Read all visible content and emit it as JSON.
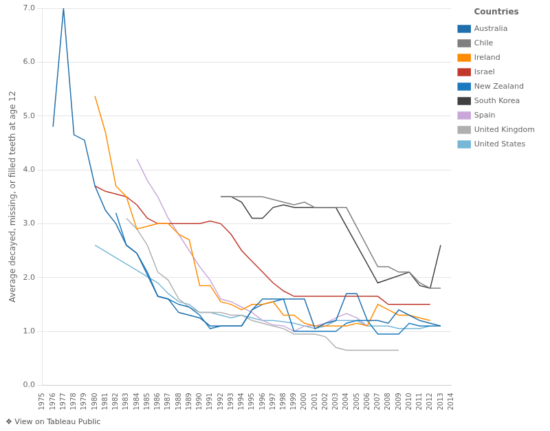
{
  "chart_data": {
    "type": "line",
    "ylabel": "Average decayed, missing, or filled teeth at age 12",
    "annotations": [
      "❖ View on Tableau Public"
    ],
    "legend_title": "Countries",
    "legend": "upper right",
    "grid": "y",
    "xlim": [
      1975,
      2014
    ],
    "xticks": [
      1975,
      1976,
      1977,
      1978,
      1979,
      1980,
      1981,
      1982,
      1983,
      1984,
      1985,
      1986,
      1987,
      1988,
      1989,
      1990,
      1991,
      1992,
      1993,
      1994,
      1995,
      1996,
      1997,
      1998,
      1999,
      2000,
      2001,
      2002,
      2003,
      2004,
      2005,
      2006,
      2007,
      2008,
      2009,
      2010,
      2011,
      2012,
      2013,
      2014
    ],
    "ylim": [
      0.0,
      7.0
    ],
    "yticks": [
      {
        "value": 0,
        "label": "0.0"
      },
      {
        "value": 1,
        "label": "1.0"
      },
      {
        "value": 2,
        "label": "2.0"
      },
      {
        "value": 3,
        "label": "3.0"
      },
      {
        "value": 4,
        "label": "4.0"
      },
      {
        "value": 5,
        "label": "5.0"
      },
      {
        "value": 6,
        "label": "6.0"
      },
      {
        "value": 7,
        "label": "7.0"
      }
    ],
    "series": [
      {
        "name": "Australia",
        "color": "#1f6fad",
        "x": [
          1976,
          1977,
          1978,
          1979,
          1980,
          1981,
          1982,
          1983,
          1984,
          1985,
          1986,
          1987,
          1988,
          1989,
          1990,
          1991,
          1992,
          1993,
          1994,
          1995,
          1996,
          1997,
          1998,
          1999,
          2000,
          2001,
          2002,
          2003,
          2004,
          2005,
          2006,
          2007,
          2008,
          2009,
          2010,
          2011,
          2012,
          2013
        ],
        "values": [
          4.8,
          7.0,
          4.65,
          4.55,
          3.7,
          3.25,
          3.0,
          2.6,
          2.45,
          2.05,
          1.65,
          1.6,
          1.35,
          1.3,
          1.25,
          1.1,
          1.1,
          1.1,
          1.1,
          1.4,
          1.6,
          1.6,
          1.6,
          1.6,
          1.6,
          1.05,
          1.15,
          1.2,
          1.7,
          1.7,
          1.2,
          1.2,
          1.15,
          1.4,
          1.3,
          1.2,
          1.15,
          1.1
        ]
      },
      {
        "name": "Chile",
        "color": "#7f7f7f",
        "x": [
          1992,
          1996,
          1999,
          2000,
          2001,
          2002,
          2003,
          2004,
          2007,
          2008,
          2009,
          2010,
          2011,
          2012,
          2013
        ],
        "values": [
          3.5,
          3.5,
          3.35,
          3.4,
          3.3,
          3.3,
          3.3,
          3.3,
          2.2,
          2.2,
          2.1,
          2.1,
          1.9,
          1.8,
          1.8
        ]
      },
      {
        "name": "Ireland",
        "color": "#ff8c00",
        "x": [
          1980,
          1981,
          1982,
          1983,
          1984,
          1985,
          1986,
          1987,
          1988,
          1989,
          1990,
          1991,
          1992,
          1993,
          1994,
          1995,
          1996,
          1997,
          1998,
          1999,
          2000,
          2001,
          2002,
          2003,
          2004,
          2005,
          2006,
          2007,
          2008,
          2009,
          2010,
          2011,
          2012
        ],
        "values": [
          5.37,
          4.7,
          3.7,
          3.5,
          2.9,
          2.95,
          3.0,
          3.0,
          2.8,
          2.7,
          1.85,
          1.85,
          1.55,
          1.5,
          1.4,
          1.5,
          1.5,
          1.55,
          1.3,
          1.3,
          1.15,
          1.1,
          1.1,
          1.1,
          1.1,
          1.15,
          1.1,
          1.5,
          1.4,
          1.3,
          1.3,
          1.25,
          1.2
        ]
      },
      {
        "name": "Israel",
        "color": "#c0392b",
        "x": [
          1980,
          1981,
          1982,
          1983,
          1984,
          1985,
          1986,
          1987,
          1988,
          1989,
          1990,
          1991,
          1992,
          1993,
          1994,
          1995,
          1996,
          1997,
          1998,
          1999,
          2000,
          2001,
          2002,
          2003,
          2004,
          2005,
          2006,
          2007,
          2008,
          2009,
          2010,
          2011,
          2012
        ],
        "values": [
          3.7,
          3.6,
          3.55,
          3.5,
          3.35,
          3.1,
          3.0,
          3.0,
          3.0,
          3.0,
          3.0,
          3.05,
          3.0,
          2.8,
          2.5,
          2.3,
          2.1,
          1.9,
          1.75,
          1.65,
          1.65,
          1.65,
          1.65,
          1.65,
          1.65,
          1.65,
          1.65,
          1.65,
          1.5,
          1.5,
          1.5,
          1.5,
          1.5
        ]
      },
      {
        "name": "New Zealand",
        "color": "#1a7abf",
        "x": [
          1982,
          1983,
          1984,
          1985,
          1986,
          1987,
          1988,
          1989,
          1990,
          1991,
          1992,
          1993,
          1994,
          1995,
          1996,
          1997,
          1998,
          1999,
          2000,
          2001,
          2002,
          2003,
          2004,
          2005,
          2006,
          2007,
          2008,
          2009,
          2010,
          2011,
          2012,
          2013
        ],
        "values": [
          3.2,
          2.6,
          2.45,
          2.1,
          1.65,
          1.6,
          1.5,
          1.45,
          1.3,
          1.05,
          1.1,
          1.1,
          1.1,
          1.4,
          1.5,
          1.55,
          1.6,
          1.0,
          1.0,
          1.0,
          1.0,
          1.0,
          1.15,
          1.2,
          1.2,
          0.95,
          0.95,
          0.95,
          1.15,
          1.1,
          1.1,
          1.1
        ]
      },
      {
        "name": "South Korea",
        "color": "#404040",
        "x": [
          1992,
          1993,
          1994,
          1995,
          1996,
          1997,
          1998,
          1999,
          2000,
          2001,
          2002,
          2003,
          2007,
          2010,
          2011,
          2012,
          2013
        ],
        "values": [
          3.5,
          3.5,
          3.4,
          3.1,
          3.1,
          3.3,
          3.35,
          3.3,
          3.3,
          3.3,
          3.3,
          3.3,
          1.9,
          2.1,
          1.85,
          1.8,
          2.6
        ]
      },
      {
        "name": "Spain",
        "color": "#c9a8d9",
        "x": [
          1984,
          1985,
          1986,
          1987,
          1988,
          1989,
          1990,
          1991,
          1992,
          1993,
          1994,
          1995,
          1996,
          1997,
          1998,
          1999,
          2000,
          2001,
          2002,
          2003,
          2004,
          2005,
          2006
        ],
        "values": [
          4.2,
          3.8,
          3.5,
          3.1,
          2.8,
          2.5,
          2.2,
          1.95,
          1.6,
          1.55,
          1.45,
          1.35,
          1.2,
          1.12,
          1.1,
          1.0,
          1.1,
          1.1,
          1.15,
          1.25,
          1.33,
          1.25,
          1.1
        ]
      },
      {
        "name": "United Kingdom",
        "color": "#b0b0b0",
        "x": [
          1983,
          1984,
          1985,
          1986,
          1987,
          1988,
          1989,
          1990,
          1991,
          1992,
          1993,
          1994,
          1995,
          1996,
          1997,
          1998,
          1999,
          2000,
          2001,
          2002,
          2003,
          2004,
          2005,
          2006,
          2007,
          2008,
          2009
        ],
        "values": [
          3.1,
          2.9,
          2.6,
          2.1,
          1.95,
          1.6,
          1.45,
          1.35,
          1.35,
          1.35,
          1.3,
          1.3,
          1.2,
          1.15,
          1.1,
          1.05,
          0.95,
          0.95,
          0.95,
          0.9,
          0.7,
          0.65,
          0.65,
          0.65,
          0.65,
          0.65,
          0.65
        ]
      },
      {
        "name": "United States",
        "color": "#76b7d6",
        "x": [
          1980,
          1986,
          1987,
          1988,
          1989,
          1990,
          1991,
          1992,
          1993,
          1994,
          1995,
          1996,
          1997,
          1998,
          1999,
          2000,
          2001,
          2002,
          2003,
          2004,
          2005,
          2006,
          2007,
          2008,
          2009,
          2010,
          2011,
          2012
        ],
        "values": [
          2.6,
          1.9,
          1.7,
          1.55,
          1.5,
          1.35,
          1.35,
          1.3,
          1.25,
          1.3,
          1.25,
          1.2,
          1.2,
          1.18,
          1.15,
          1.1,
          1.05,
          1.1,
          1.2,
          1.2,
          1.2,
          1.1,
          1.1,
          1.1,
          1.05,
          1.05,
          1.05,
          1.1
        ]
      }
    ]
  }
}
